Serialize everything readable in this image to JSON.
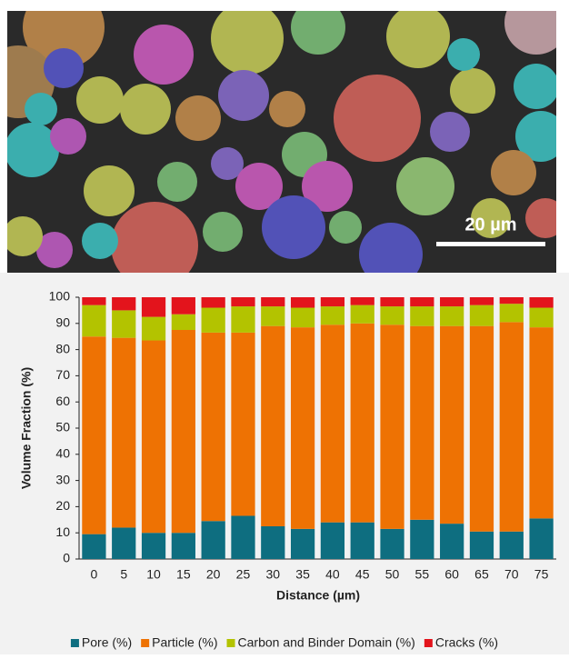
{
  "image": {
    "scale_bar": "20 µm"
  },
  "chart_data": {
    "type": "stacked-bar",
    "x_label": "Distance (µm)",
    "y_label": "Volume Fraction (%)",
    "categories": [
      "0",
      "5",
      "10",
      "15",
      "20",
      "25",
      "30",
      "35",
      "40",
      "45",
      "50",
      "55",
      "60",
      "65",
      "70",
      "75"
    ],
    "ylim": [
      0,
      100
    ],
    "yticks": [
      0,
      10,
      20,
      30,
      40,
      50,
      60,
      70,
      80,
      90,
      100
    ],
    "grid": false,
    "legend": "bottom",
    "series": [
      {
        "name": "Pore (%)",
        "color": "#0e6e80",
        "values": [
          9.5,
          12,
          10,
          10,
          14.5,
          16.5,
          12.5,
          11.5,
          14,
          14,
          11.5,
          15,
          13.5,
          10.5,
          10.5,
          15.5
        ]
      },
      {
        "name": "Particle (%)",
        "color": "#ee7203",
        "values": [
          75.5,
          72.5,
          73.5,
          77.5,
          72,
          70,
          76.5,
          77,
          75.5,
          76,
          78,
          74,
          75.5,
          78.5,
          80,
          73
        ]
      },
      {
        "name": "Carbon and Binder Domain (%)",
        "color": "#b3c300",
        "values": [
          12,
          10.5,
          9,
          6,
          9.5,
          10,
          7.5,
          7.5,
          7,
          7,
          7,
          7.5,
          7.5,
          8,
          7,
          7.5
        ]
      },
      {
        "name": "Cracks (%)",
        "color": "#e3141c",
        "values": [
          3,
          5,
          7.5,
          6.5,
          4,
          3.5,
          3.5,
          4,
          3.5,
          3,
          3.5,
          3.5,
          3.5,
          3,
          2.5,
          4
        ]
      }
    ]
  }
}
